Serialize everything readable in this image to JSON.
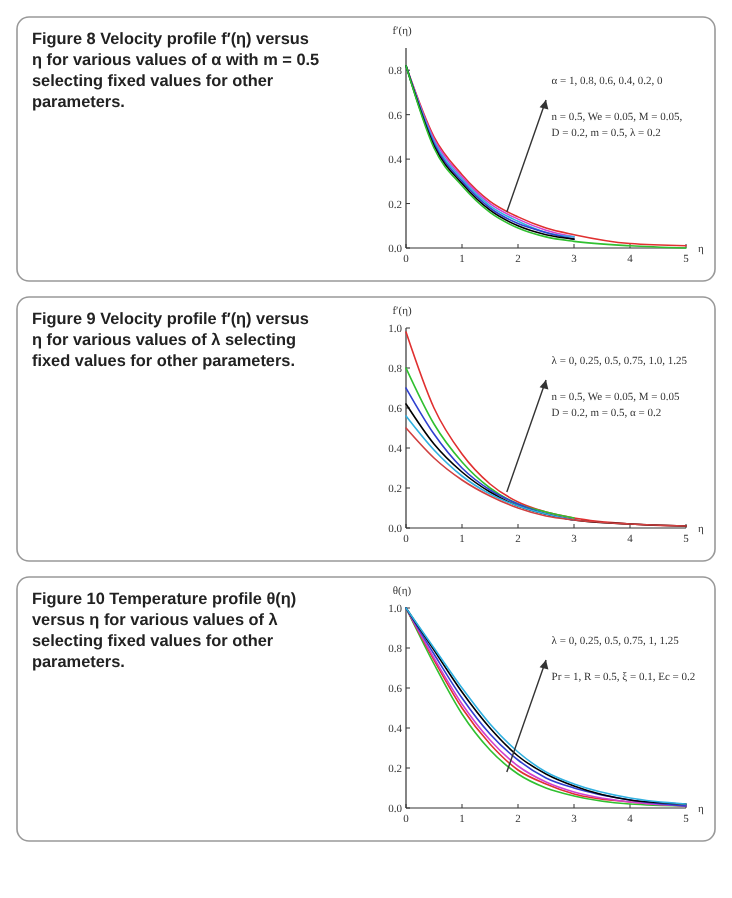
{
  "chart_data": [
    {
      "type": "line",
      "title": "Figure 8  Velocity profile f′(η) versus η for various values of α with m = 0.5 selecting fixed values for other parameters.",
      "xlabel": "η",
      "ylabel": "f′(η)",
      "x": [
        0,
        0.5,
        1,
        1.5,
        2,
        2.5,
        3,
        4,
        5
      ],
      "xlim": [
        0,
        5
      ],
      "xticks": [
        0,
        1,
        2,
        3,
        4,
        5
      ],
      "ylim": [
        0,
        0.9
      ],
      "yticks": [
        {
          "value": 0,
          "label": "0.0"
        },
        {
          "value": 0.2,
          "label": "0.2"
        },
        {
          "value": 0.4,
          "label": "0.4"
        },
        {
          "value": 0.6,
          "label": "0.6"
        },
        {
          "value": 0.8,
          "label": "0.8"
        }
      ],
      "annotations": [
        "α = 1, 0.8, 0.6, 0.4, 0.2, 0",
        "n = 0.5, We = 0.05, M = 0.05,",
        "D = 0.2, m = 0.5, λ = 0.2"
      ],
      "series": [
        {
          "color": "#e03030",
          "values": [
            0.82,
            0.5,
            0.33,
            0.21,
            0.14,
            0.09,
            0.06,
            0.02,
            0.01
          ]
        },
        {
          "color": "#d040d0",
          "values": [
            0.82,
            0.49,
            0.32,
            0.2,
            0.13,
            0.08,
            0.05,
            null,
            null
          ]
        },
        {
          "color": "#30b0e0",
          "values": [
            0.82,
            0.48,
            0.31,
            0.19,
            0.12,
            0.07,
            0.05,
            null,
            null
          ]
        },
        {
          "color": "#3040d0",
          "values": [
            0.82,
            0.47,
            0.3,
            0.18,
            0.11,
            0.07,
            0.04,
            null,
            null
          ]
        },
        {
          "color": "#000000",
          "values": [
            0.82,
            0.46,
            0.29,
            0.17,
            0.1,
            0.06,
            0.04,
            null,
            null
          ]
        },
        {
          "color": "#30c030",
          "values": [
            0.82,
            0.45,
            0.28,
            0.16,
            0.09,
            0.05,
            0.03,
            0.01,
            0
          ]
        }
      ]
    },
    {
      "type": "line",
      "title": "Figure 9  Velocity profile f′(η) versus η for various values of λ selecting fixed values for other parameters.",
      "xlabel": "η",
      "ylabel": "f′(η)",
      "x": [
        0,
        0.5,
        1,
        1.5,
        2,
        2.5,
        3,
        4,
        5
      ],
      "xlim": [
        0,
        5
      ],
      "xticks": [
        0,
        1,
        2,
        3,
        4,
        5
      ],
      "ylim": [
        0,
        1
      ],
      "yticks": [
        {
          "value": 0,
          "label": "0.0"
        },
        {
          "value": 0.2,
          "label": "0.2"
        },
        {
          "value": 0.4,
          "label": "0.4"
        },
        {
          "value": 0.6,
          "label": "0.6"
        },
        {
          "value": 0.8,
          "label": "0.8"
        },
        {
          "value": 1,
          "label": "1.0"
        }
      ],
      "annotations": [
        "λ = 0, 0.25, 0.5, 0.75, 1.0, 1.25",
        "n = 0.5, We = 0.05, M = 0.05",
        "D = 0.2, m = 0.5, α = 0.2"
      ],
      "series": [
        {
          "color": "#e03030",
          "values": [
            0.98,
            0.6,
            0.37,
            0.22,
            0.13,
            0.08,
            0.05,
            0.02,
            0.01
          ]
        },
        {
          "color": "#30c030",
          "values": [
            0.8,
            0.52,
            0.33,
            0.2,
            0.12,
            0.08,
            0.05,
            null,
            null
          ]
        },
        {
          "color": "#3040d0",
          "values": [
            0.7,
            0.47,
            0.3,
            0.19,
            0.12,
            0.07,
            0.04,
            null,
            null
          ]
        },
        {
          "color": "#000000",
          "values": [
            0.62,
            0.42,
            0.28,
            0.18,
            0.11,
            0.07,
            0.04,
            0.02,
            0.01
          ]
        },
        {
          "color": "#30b0e0",
          "values": [
            0.56,
            0.39,
            0.26,
            0.17,
            0.11,
            0.07,
            0.04,
            null,
            null
          ]
        },
        {
          "color": "#d04040",
          "values": [
            0.5,
            0.35,
            0.24,
            0.16,
            0.1,
            0.06,
            0.04,
            0.02,
            0.01
          ]
        }
      ]
    },
    {
      "type": "line",
      "title": "Figure 10  Temperature profile θ(η) versus η for various values of λ selecting fixed values for other parameters.",
      "xlabel": "η",
      "ylabel": "θ(η)",
      "x": [
        0,
        0.5,
        1,
        1.5,
        2,
        2.5,
        3,
        4,
        5
      ],
      "xlim": [
        0,
        5
      ],
      "xticks": [
        0,
        1,
        2,
        3,
        4,
        5
      ],
      "ylim": [
        0,
        1
      ],
      "yticks": [
        {
          "value": 0,
          "label": "0.0"
        },
        {
          "value": 0.2,
          "label": "0.2"
        },
        {
          "value": 0.4,
          "label": "0.4"
        },
        {
          "value": 0.6,
          "label": "0.6"
        },
        {
          "value": 0.8,
          "label": "0.8"
        },
        {
          "value": 1,
          "label": "1.0"
        }
      ],
      "annotations": [
        "λ = 0, 0.25, 0.5, 0.75, 1, 1.25",
        "Pr = 1, R = 0.5, ξ = 0.1, Ec = 0.2"
      ],
      "series": [
        {
          "color": "#30c030",
          "values": [
            1,
            0.72,
            0.47,
            0.29,
            0.17,
            0.1,
            0.06,
            0.02,
            0.01
          ]
        },
        {
          "color": "#e03030",
          "values": [
            1,
            0.74,
            0.5,
            0.32,
            0.19,
            0.12,
            0.07,
            0.03,
            0.01
          ]
        },
        {
          "color": "#d040d0",
          "values": [
            1,
            0.75,
            0.52,
            0.34,
            0.21,
            0.13,
            0.08,
            0.03,
            0.01
          ]
        },
        {
          "color": "#3040d0",
          "values": [
            1,
            0.77,
            0.55,
            0.37,
            0.24,
            0.15,
            0.1,
            0.04,
            0.01
          ]
        },
        {
          "color": "#000000",
          "values": [
            1,
            0.79,
            0.58,
            0.4,
            0.26,
            0.17,
            0.11,
            0.04,
            0.02
          ]
        },
        {
          "color": "#30b0e0",
          "values": [
            1,
            0.8,
            0.6,
            0.42,
            0.28,
            0.18,
            0.12,
            0.05,
            0.02
          ]
        }
      ]
    }
  ]
}
